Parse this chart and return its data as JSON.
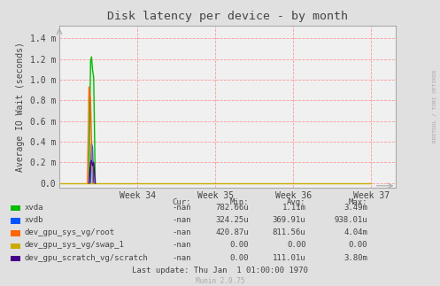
{
  "title": "Disk latency per device - by month",
  "ylabel": "Average IO Wait (seconds)",
  "bg_color": "#e0e0e0",
  "plot_bg_color": "#f0f0f0",
  "grid_color": "#ff9999",
  "grid_style": "--",
  "series": [
    {
      "name": "xvda",
      "color": "#00bb00",
      "data": [
        [
          0.095,
          0.0
        ],
        [
          0.1,
          1.18
        ],
        [
          0.103,
          1.22
        ],
        [
          0.106,
          1.1
        ],
        [
          0.11,
          1.02
        ],
        [
          0.115,
          0.0
        ]
      ]
    },
    {
      "name": "xvdb",
      "color": "#0055ff",
      "data": [
        [
          0.1,
          0.0
        ],
        [
          0.103,
          0.38
        ],
        [
          0.106,
          0.35
        ],
        [
          0.11,
          0.0
        ]
      ]
    },
    {
      "name": "dev_gpu_sys_vg/root",
      "color": "#ff6600",
      "data": [
        [
          0.09,
          0.0
        ],
        [
          0.095,
          0.93
        ],
        [
          0.1,
          0.8
        ],
        [
          0.106,
          0.0
        ]
      ]
    },
    {
      "name": "dev_gpu_sys_vg/swap_1",
      "color": "#ccaa00",
      "data": [
        [
          0.0,
          0.0
        ],
        [
          1.0,
          0.0
        ]
      ]
    },
    {
      "name": "dev_gpu_scratch_vg/scratch",
      "color": "#440088",
      "data": [
        [
          0.095,
          0.0
        ],
        [
          0.1,
          0.2
        ],
        [
          0.103,
          0.22
        ],
        [
          0.106,
          0.17
        ],
        [
          0.11,
          0.2
        ],
        [
          0.115,
          0.0
        ]
      ]
    }
  ],
  "xtick_positions": [
    0.25,
    0.5,
    0.75,
    1.0
  ],
  "xtick_labels": [
    "Week 34",
    "Week 35",
    "Week 36",
    "Week 37"
  ],
  "ytick_positions": [
    0.0,
    0.2,
    0.4,
    0.6,
    0.8,
    1.0,
    1.2,
    1.4
  ],
  "ytick_labels": [
    "0.0",
    "0.2 m",
    "0.4 m",
    "0.6 m",
    "0.8 m",
    "1.0 m",
    "1.2 m",
    "1.4 m"
  ],
  "ylim": [
    -0.04,
    1.52
  ],
  "xlim": [
    0.0,
    1.08
  ],
  "table_headers": [
    "Cur:",
    "Min:",
    "Avg:",
    "Max:"
  ],
  "table_data": [
    [
      "-nan",
      "782.66u",
      "1.11m",
      "3.49m"
    ],
    [
      "-nan",
      "324.25u",
      "369.91u",
      "938.01u"
    ],
    [
      "-nan",
      "420.87u",
      "811.56u",
      "4.04m"
    ],
    [
      "-nan",
      "0.00",
      "0.00",
      "0.00"
    ],
    [
      "-nan",
      "0.00",
      "111.01u",
      "3.80m"
    ]
  ],
  "last_update": "Last update: Thu Jan  1 01:00:00 1970",
  "munin_version": "Munin 2.0.75",
  "rrdtool_label": "RRDTOOL / TOBI OETIKER"
}
